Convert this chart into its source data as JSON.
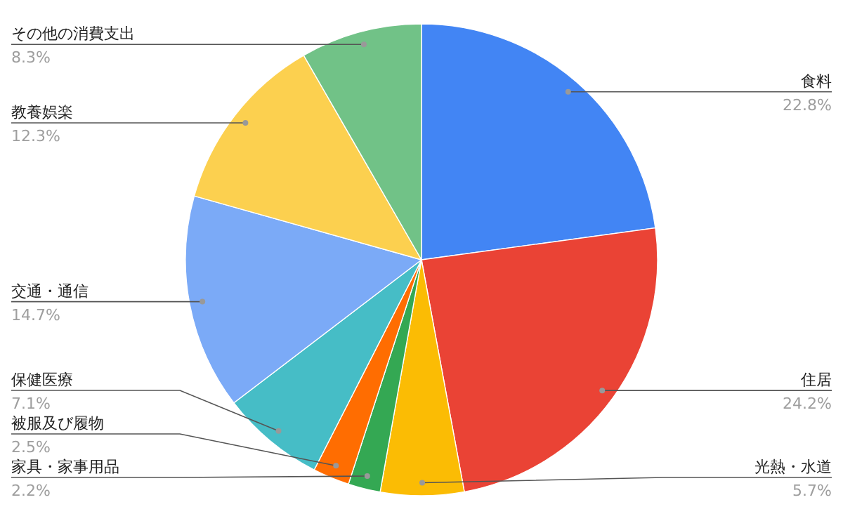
{
  "chart_data": {
    "type": "pie",
    "categories": [
      "食料",
      "住居",
      "光熱・水道",
      "家具・家事用品",
      "被服及び履物",
      "保健医療",
      "交通・通信",
      "教養娯楽",
      "その他の消費支出"
    ],
    "values": [
      22.8,
      24.2,
      5.7,
      2.2,
      2.5,
      7.1,
      14.7,
      12.3,
      8.3
    ],
    "colors": [
      "#4285f4",
      "#ea4335",
      "#fbbc04",
      "#34a853",
      "#ff6d01",
      "#46bdc6",
      "#7baaf7",
      "#fcd04f",
      "#71c287"
    ],
    "value_labels": [
      "22.8%",
      "24.2%",
      "5.7%",
      "2.2%",
      "2.5%",
      "7.1%",
      "14.7%",
      "12.3%",
      "8.3%"
    ],
    "legend": false
  }
}
